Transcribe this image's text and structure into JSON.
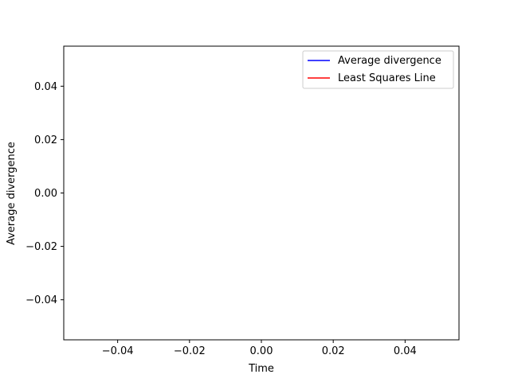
{
  "chart_data": {
    "type": "line",
    "title": "",
    "xlabel": "Time",
    "ylabel": "Average divergence",
    "xlim": [
      -0.055,
      0.055
    ],
    "ylim": [
      -0.055,
      0.055
    ],
    "xticks": [
      -0.04,
      -0.02,
      0.0,
      0.02,
      0.04
    ],
    "yticks": [
      -0.04,
      -0.02,
      0.0,
      0.02,
      0.04
    ],
    "xtick_labels": [
      "−0.04",
      "−0.02",
      "0.00",
      "0.02",
      "0.04"
    ],
    "ytick_labels": [
      "−0.04",
      "−0.02",
      "0.00",
      "0.02",
      "0.04"
    ],
    "grid": false,
    "legend_position": "top-right",
    "series": [
      {
        "name": "Average divergence",
        "color": "#0000ff",
        "x": [],
        "y": []
      },
      {
        "name": "Least Squares Line",
        "color": "#ff0000",
        "x": [],
        "y": []
      }
    ]
  }
}
